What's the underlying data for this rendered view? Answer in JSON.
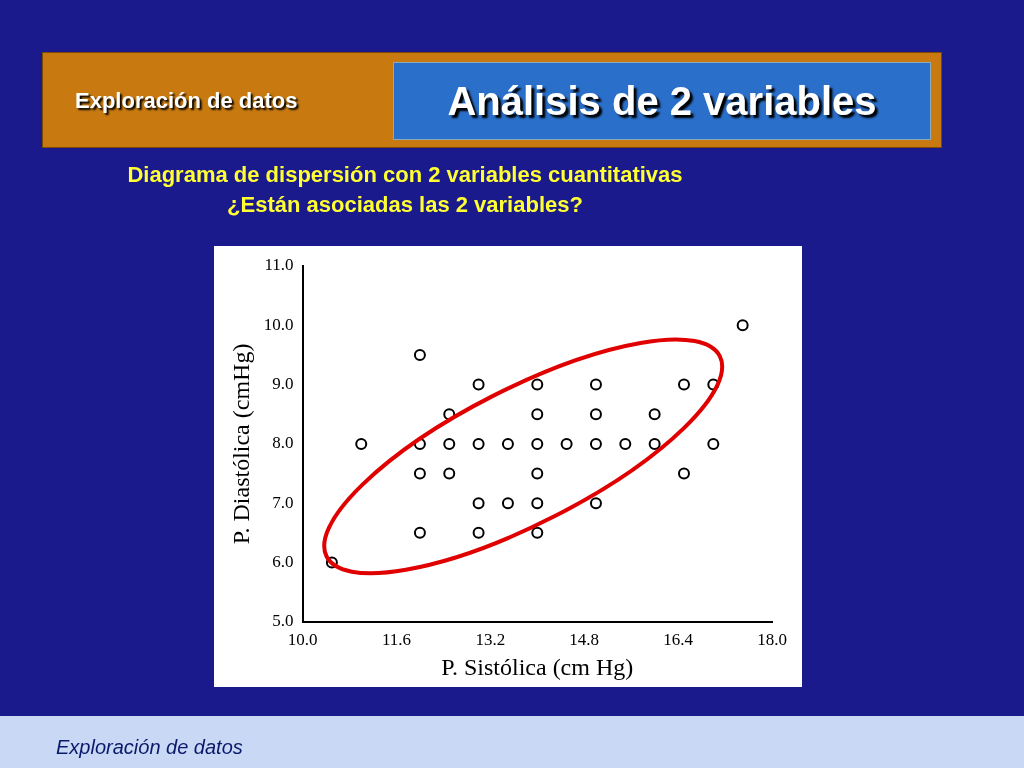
{
  "chart_data": {
    "type": "scatter",
    "title": "Análisis de 2 variables",
    "subtitle": "Diagrama de dispersión con 2 variables cuantitativas",
    "annotations": [
      "Exploración de datos",
      "¿Están asociadas las 2 variables?",
      "Exploración de datos"
    ],
    "xlabel": "P. Sistólica (cm Hg)",
    "ylabel": "P. Diastólica (cmHg)",
    "x": [
      10.5,
      11,
      12,
      12,
      12,
      12,
      12.5,
      12.5,
      12.5,
      13,
      13,
      13,
      13,
      13.5,
      13.5,
      14,
      14,
      14,
      14,
      14,
      14,
      14.5,
      15,
      15,
      15,
      15,
      15.5,
      16,
      16,
      16.5,
      16.5,
      17,
      17,
      17.5
    ],
    "values": [
      6,
      8,
      9.5,
      8,
      7.5,
      6.5,
      8.5,
      8,
      7.5,
      9,
      8,
      7,
      6.5,
      8,
      7,
      9,
      8.5,
      8,
      7.5,
      7,
      6.5,
      8,
      9,
      8.5,
      8,
      7,
      8,
      8.5,
      8,
      9,
      7.5,
      9,
      8,
      10
    ],
    "color": "#000000",
    "marker": "circle",
    "grid": false,
    "legend": false,
    "xlim": [
      10,
      18
    ],
    "xticks": [
      {
        "value": 10,
        "label": "10.0"
      },
      {
        "value": 11.6,
        "label": "11.6"
      },
      {
        "value": 13.2,
        "label": "13.2"
      },
      {
        "value": 14.8,
        "label": "14.8"
      },
      {
        "value": 16.4,
        "label": "16.4"
      },
      {
        "value": 18,
        "label": "18.0"
      }
    ],
    "ylim": [
      5,
      11
    ],
    "yticks": [
      {
        "value": 5,
        "label": "5.0"
      },
      {
        "value": 6,
        "label": "6.0"
      },
      {
        "value": 7,
        "label": "7.0"
      },
      {
        "value": 8,
        "label": "8.0"
      },
      {
        "value": 9,
        "label": "9.0"
      },
      {
        "value": 10,
        "label": "10.0"
      },
      {
        "value": 11,
        "label": "11.0"
      }
    ]
  }
}
